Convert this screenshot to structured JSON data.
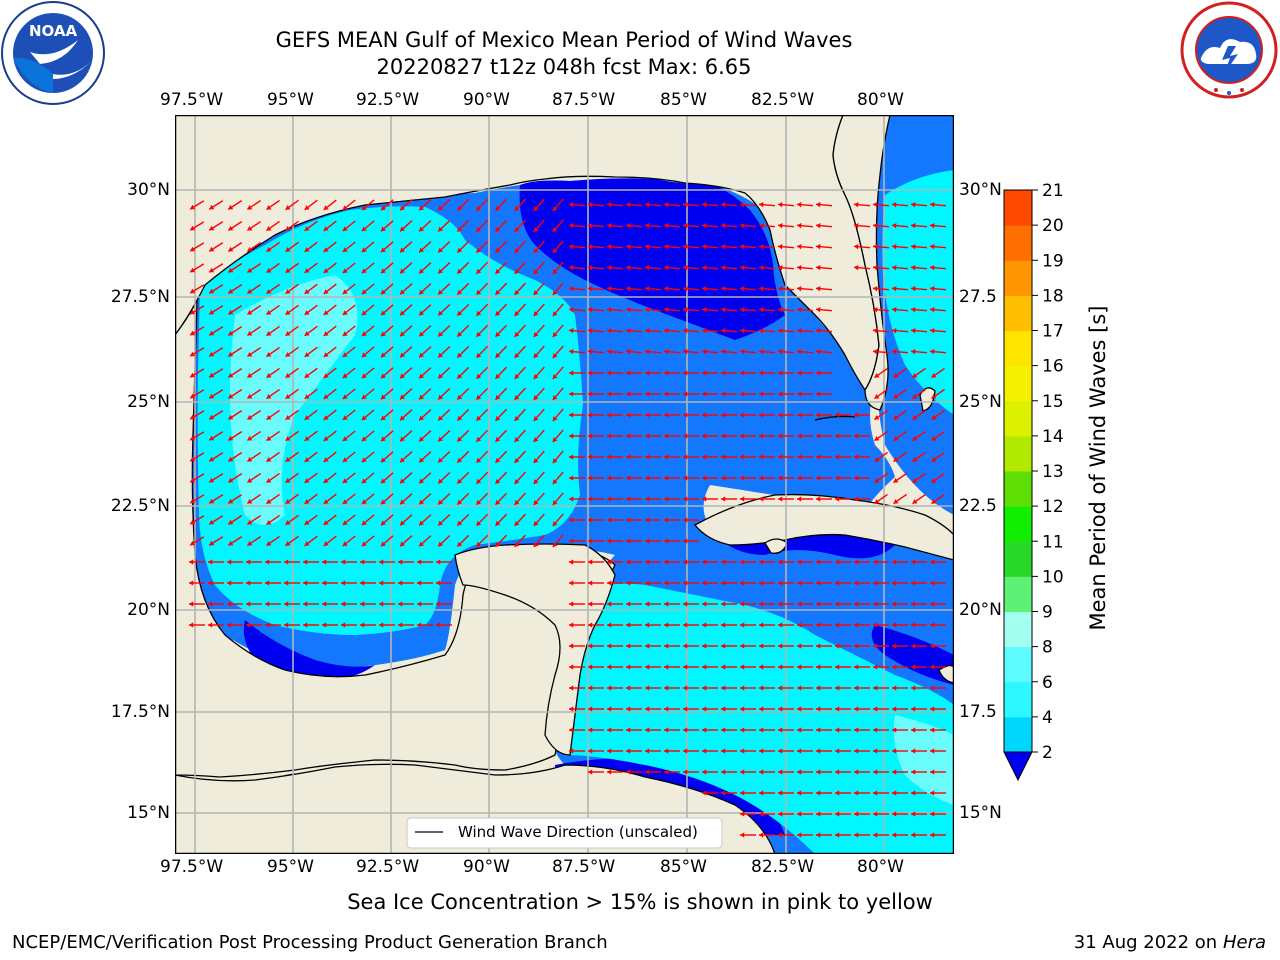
{
  "header": {
    "title_line1": "GEFS MEAN Gulf of Mexico Mean Period of Wind Waves",
    "title_line2": "20220827 t12z 048h fcst   Max: 6.65"
  },
  "logos": {
    "left_text": "NOAA",
    "left_ring": "NATIONAL OCEANIC AND ATMOSPHERIC ADMINISTRATION · U.S. DEPARTMENT OF COMMERCE",
    "right_ring": "NATIONAL WEATHER SERVICE"
  },
  "axes": {
    "lon_labels": [
      "97.5°W",
      "95°W",
      "92.5°W",
      "90°W",
      "87.5°W",
      "85°W",
      "82.5°W",
      "80°W"
    ],
    "lat_labels_left": [
      "30°N",
      "27.5°N",
      "25°N",
      "22.5°N",
      "20°N",
      "17.5°N",
      "15°N"
    ],
    "lat_labels_right": [
      "30°N",
      "27.5",
      "25°N",
      "22.5",
      "20°N",
      "17.5",
      "15°N"
    ]
  },
  "legend": {
    "label": "Wind Wave Direction (unscaled)"
  },
  "colorbar": {
    "title": "Mean Period of Wind Waves [s]",
    "ticks": [
      "2",
      "4",
      "6",
      "8",
      "9",
      "10",
      "11",
      "12",
      "13",
      "14",
      "15",
      "16",
      "17",
      "18",
      "19",
      "20",
      "21"
    ],
    "colors": [
      "#0a7cff",
      "#00d7ff",
      "#2df8ff",
      "#5dfaff",
      "#a3fff0",
      "#5ef076",
      "#28d828",
      "#11ee00",
      "#5fde06",
      "#b2e900",
      "#dcf000",
      "#f6f100",
      "#ffe400",
      "#ffbe00",
      "#ff9600",
      "#ff6e00",
      "#ff4800",
      "#ff2000"
    ]
  },
  "palette": {
    "land": "#efecdb",
    "deep_blue": "#0000f0",
    "mid_blue": "#1478ff",
    "cyan": "#00f7ff",
    "light_cyan": "#7dfdfc",
    "arrow": "#ff0000"
  },
  "footer": {
    "note": "Sea Ice Concentration > 15% is shown in pink to yellow",
    "left": "NCEP/EMC/Verification Post Processing Product Generation Branch",
    "date": "31 Aug 2022 on",
    "machine": "Hera"
  }
}
